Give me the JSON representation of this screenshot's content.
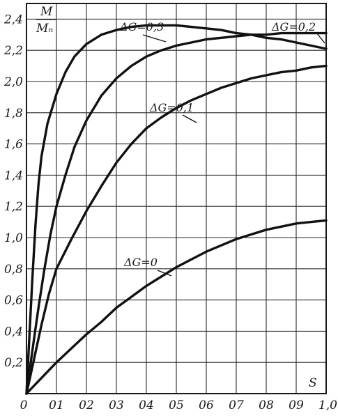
{
  "chart_data": {
    "type": "line",
    "ylabel_top": "M",
    "ylabel_bottom": "Mₙ",
    "xlabel": "S",
    "xlim": [
      0,
      1.0
    ],
    "ylim": [
      0,
      2.5
    ],
    "grid": true,
    "x_ticks": [
      {
        "value": 0.0,
        "label": "0"
      },
      {
        "value": 0.1,
        "label": "01"
      },
      {
        "value": 0.2,
        "label": "02"
      },
      {
        "value": 0.3,
        "label": "03"
      },
      {
        "value": 0.4,
        "label": "04"
      },
      {
        "value": 0.5,
        "label": "05"
      },
      {
        "value": 0.6,
        "label": "06"
      },
      {
        "value": 0.7,
        "label": "07"
      },
      {
        "value": 0.8,
        "label": "08"
      },
      {
        "value": 0.9,
        "label": "09"
      },
      {
        "value": 1.0,
        "label": "1,0"
      }
    ],
    "y_ticks": [
      {
        "value": 0.2,
        "label": "0,2"
      },
      {
        "value": 0.4,
        "label": "0,4"
      },
      {
        "value": 0.6,
        "label": "0,6"
      },
      {
        "value": 0.8,
        "label": "0,8"
      },
      {
        "value": 1.0,
        "label": "1,0"
      },
      {
        "value": 1.2,
        "label": "1,2"
      },
      {
        "value": 1.4,
        "label": "1,4"
      },
      {
        "value": 1.6,
        "label": "1,6"
      },
      {
        "value": 1.8,
        "label": "1,8"
      },
      {
        "value": 2.0,
        "label": "2,0"
      },
      {
        "value": 2.2,
        "label": "2,2"
      },
      {
        "value": 2.4,
        "label": "2,4"
      }
    ],
    "series": [
      {
        "name": "ΔG=0",
        "x": [
          0,
          0.05,
          0.1,
          0.15,
          0.2,
          0.25,
          0.3,
          0.35,
          0.4,
          0.45,
          0.5,
          0.55,
          0.6,
          0.65,
          0.7,
          0.75,
          0.8,
          0.85,
          0.9,
          0.95,
          1.0
        ],
        "y": [
          0,
          0.1,
          0.2,
          0.29,
          0.38,
          0.46,
          0.55,
          0.62,
          0.69,
          0.75,
          0.81,
          0.86,
          0.91,
          0.95,
          0.99,
          1.02,
          1.05,
          1.07,
          1.09,
          1.1,
          1.11
        ]
      },
      {
        "name": "ΔG=0,1",
        "x": [
          0,
          0.025,
          0.05,
          0.075,
          0.1,
          0.15,
          0.2,
          0.25,
          0.3,
          0.35,
          0.4,
          0.45,
          0.5,
          0.55,
          0.6,
          0.65,
          0.7,
          0.75,
          0.8,
          0.85,
          0.9,
          0.95,
          1.0
        ],
        "y": [
          0,
          0.22,
          0.44,
          0.64,
          0.8,
          0.99,
          1.17,
          1.33,
          1.48,
          1.6,
          1.7,
          1.77,
          1.83,
          1.88,
          1.92,
          1.96,
          1.99,
          2.02,
          2.04,
          2.06,
          2.07,
          2.09,
          2.1
        ]
      },
      {
        "name": "ΔG=0,2",
        "x": [
          0,
          0.02,
          0.04,
          0.06,
          0.08,
          0.1,
          0.13,
          0.16,
          0.2,
          0.25,
          0.3,
          0.35,
          0.4,
          0.45,
          0.5,
          0.55,
          0.6,
          0.65,
          0.7,
          0.75,
          0.8,
          0.85,
          0.9,
          0.95,
          1.0
        ],
        "y": [
          0,
          0.28,
          0.55,
          0.8,
          1.02,
          1.2,
          1.4,
          1.58,
          1.75,
          1.91,
          2.02,
          2.1,
          2.16,
          2.2,
          2.23,
          2.25,
          2.27,
          2.28,
          2.29,
          2.3,
          2.3,
          2.31,
          2.31,
          2.31,
          2.31
        ]
      },
      {
        "name": "ΔG=0,3",
        "x": [
          0,
          0.01,
          0.02,
          0.03,
          0.04,
          0.05,
          0.07,
          0.1,
          0.13,
          0.16,
          0.2,
          0.25,
          0.3,
          0.35,
          0.4,
          0.45,
          0.5,
          0.55,
          0.6,
          0.65,
          0.7,
          0.75,
          0.8,
          0.85,
          0.9,
          0.95,
          1.0
        ],
        "y": [
          0,
          0.38,
          0.75,
          1.08,
          1.34,
          1.52,
          1.73,
          1.92,
          2.06,
          2.16,
          2.24,
          2.3,
          2.33,
          2.35,
          2.36,
          2.36,
          2.36,
          2.35,
          2.34,
          2.33,
          2.31,
          2.3,
          2.28,
          2.27,
          2.25,
          2.23,
          2.21
        ]
      }
    ],
    "annotations": [
      {
        "text": "ΔG=0,3",
        "series": "ΔG=0,3"
      },
      {
        "text": "ΔG=0,2",
        "series": "ΔG=0,2"
      },
      {
        "text": "ΔG=0,1",
        "series": "ΔG=0,1"
      },
      {
        "text": "ΔG=0",
        "series": "ΔG=0"
      }
    ]
  }
}
